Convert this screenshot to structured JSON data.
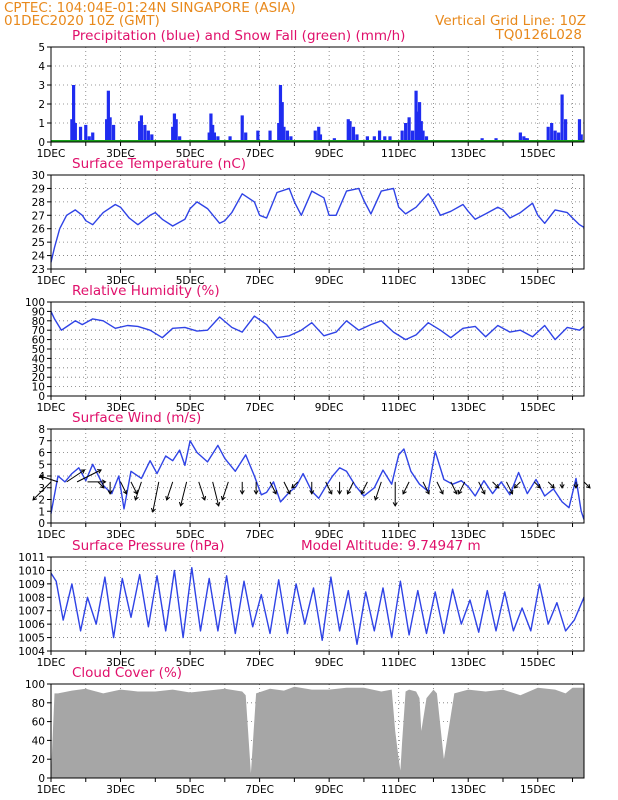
{
  "header": {
    "source_location": "CPTEC:   104:04E-01:24N   SINGAPORE (ASIA)",
    "init_time": "01DEC2020 10Z (GMT)",
    "grid_note": "Vertical Grid Line: 10Z",
    "run_code": "TQ0126L028"
  },
  "colors": {
    "header": "#e8891c",
    "title": "#e0106b",
    "line": "#2f43e6",
    "precip": "#1f2cf0",
    "snow": "#18a218",
    "cloud": "#a6a6a6",
    "wind_vector": "#000000"
  },
  "x_tick_labels": [
    "1DEC",
    "3DEC",
    "5DEC",
    "7DEC",
    "9DEC",
    "11DEC",
    "13DEC",
    "15DEC"
  ],
  "panels": {
    "precip": {
      "title": "Precipitation (blue) and Snow Fall (green) (mm/h)",
      "y_ticks": [
        "0",
        "1",
        "2",
        "3",
        "4",
        "5"
      ]
    },
    "temp": {
      "title": "Surface Temperature (nC)",
      "y_ticks": [
        "23",
        "24",
        "25",
        "26",
        "27",
        "28",
        "29",
        "30"
      ]
    },
    "rh": {
      "title": "Relative Humidity (%)",
      "y_ticks": [
        "0",
        "10",
        "20",
        "30",
        "40",
        "50",
        "60",
        "70",
        "80",
        "90",
        "100"
      ]
    },
    "wind": {
      "title": "Surface Wind (m/s)",
      "y_ticks": [
        "0",
        "1",
        "2",
        "3",
        "4",
        "5",
        "6",
        "7",
        "8"
      ]
    },
    "pres": {
      "title": "Surface Pressure (hPa)",
      "altitude": "Model Altitude: 9.74947 m",
      "y_ticks": [
        "1004",
        "1005",
        "1006",
        "1007",
        "1008",
        "1009",
        "1010",
        "1011"
      ]
    },
    "cloud": {
      "title": "Cloud Cover (%)",
      "y_ticks": [
        "0",
        "20",
        "40",
        "60",
        "80",
        "100"
      ]
    }
  },
  "chart_data": [
    {
      "type": "bar",
      "id": "precip",
      "title": "Precipitation (blue) and Snow Fall (green) (mm/h)",
      "x_unit": "day of December 2020",
      "xlim": [
        1,
        16.33
      ],
      "ylim": [
        0,
        5
      ],
      "series": [
        {
          "name": "Precipitation",
          "x": [
            1.6,
            1.65,
            1.7,
            1.85,
            2.0,
            2.1,
            2.2,
            2.6,
            2.65,
            2.7,
            2.8,
            3.55,
            3.6,
            3.7,
            3.8,
            3.9,
            4.5,
            4.55,
            4.6,
            4.7,
            5.55,
            5.6,
            5.65,
            5.7,
            5.8,
            6.15,
            6.5,
            6.6,
            6.95,
            7.3,
            7.55,
            7.6,
            7.65,
            7.7,
            7.8,
            7.9,
            8.6,
            8.7,
            8.75,
            9.15,
            9.55,
            9.6,
            9.7,
            9.8,
            10.1,
            10.3,
            10.45,
            10.6,
            10.75,
            11.1,
            11.2,
            11.3,
            11.4,
            11.5,
            11.55,
            11.6,
            11.65,
            11.7,
            11.8,
            12.9,
            13.4,
            13.8,
            14.5,
            14.6,
            14.65,
            14.7,
            15.3,
            15.4,
            15.5,
            15.6,
            15.7,
            15.8,
            16.2,
            16.25
          ],
          "values": [
            1.2,
            3.0,
            1.0,
            0.8,
            0.9,
            0.3,
            0.5,
            1.2,
            2.7,
            1.3,
            0.9,
            1.1,
            1.4,
            0.9,
            0.6,
            0.4,
            0.8,
            1.5,
            1.2,
            0.3,
            0.5,
            1.5,
            0.9,
            0.5,
            0.3,
            0.3,
            1.4,
            0.5,
            0.6,
            0.6,
            1.0,
            3.0,
            2.1,
            0.8,
            0.6,
            0.3,
            0.6,
            0.8,
            0.4,
            0.2,
            1.2,
            1.1,
            0.8,
            0.4,
            0.3,
            0.3,
            0.6,
            0.3,
            0.3,
            0.6,
            1.0,
            1.3,
            0.6,
            2.7,
            1.6,
            2.1,
            1.1,
            0.6,
            0.3,
            0.1,
            0.2,
            0.2,
            0.5,
            0.3,
            0.2,
            0.2,
            0.8,
            1.0,
            0.6,
            0.5,
            2.5,
            1.2,
            1.2,
            0.4
          ]
        },
        {
          "name": "Snow Fall",
          "x": [
            1.0,
            16.33
          ],
          "values": [
            0,
            0
          ]
        }
      ]
    },
    {
      "type": "line",
      "id": "temp",
      "title": "Surface Temperature (nC)",
      "xlim": [
        1,
        16.33
      ],
      "ylim": [
        23,
        30
      ],
      "x": [
        1.0,
        1.1,
        1.25,
        1.45,
        1.7,
        1.9,
        2.0,
        2.2,
        2.5,
        2.85,
        3.0,
        3.25,
        3.5,
        3.85,
        4.0,
        4.2,
        4.5,
        4.85,
        5.0,
        5.2,
        5.5,
        5.85,
        6.0,
        6.2,
        6.5,
        6.85,
        7.0,
        7.2,
        7.5,
        7.85,
        8.0,
        8.2,
        8.5,
        8.85,
        9.0,
        9.2,
        9.5,
        9.85,
        10.0,
        10.2,
        10.5,
        10.85,
        11.0,
        11.2,
        11.5,
        11.85,
        12.0,
        12.2,
        12.5,
        12.85,
        13.0,
        13.2,
        13.5,
        13.85,
        14.0,
        14.2,
        14.5,
        14.85,
        15.0,
        15.2,
        15.5,
        15.85,
        16.0,
        16.2,
        16.33
      ],
      "values": [
        23.5,
        24.6,
        26.0,
        27.0,
        27.4,
        27.0,
        26.6,
        26.3,
        27.2,
        27.8,
        27.6,
        26.8,
        26.3,
        27.0,
        27.2,
        26.7,
        26.2,
        26.7,
        27.5,
        28.0,
        27.5,
        26.4,
        26.6,
        27.2,
        28.6,
        28.0,
        27.0,
        26.8,
        28.7,
        29.0,
        28.0,
        27.0,
        28.8,
        28.3,
        27.0,
        27.0,
        28.8,
        29.0,
        28.1,
        27.1,
        28.8,
        29.0,
        27.6,
        27.1,
        27.6,
        28.6,
        28.0,
        27.0,
        27.3,
        27.8,
        27.3,
        26.7,
        27.1,
        27.6,
        27.4,
        26.8,
        27.2,
        27.9,
        27.0,
        26.4,
        27.4,
        27.2,
        26.8,
        26.3,
        26.1
      ]
    },
    {
      "type": "line",
      "id": "rh",
      "title": "Relative Humidity (%)",
      "xlim": [
        1,
        16.33
      ],
      "ylim": [
        0,
        100
      ],
      "x": [
        1.0,
        1.1,
        1.3,
        1.5,
        1.7,
        1.9,
        2.2,
        2.5,
        2.85,
        3.2,
        3.5,
        3.85,
        4.2,
        4.5,
        4.85,
        5.2,
        5.5,
        5.85,
        6.2,
        6.5,
        6.85,
        7.2,
        7.5,
        7.85,
        8.2,
        8.5,
        8.85,
        9.2,
        9.5,
        9.85,
        10.2,
        10.5,
        10.85,
        11.2,
        11.5,
        11.85,
        12.2,
        12.5,
        12.85,
        13.2,
        13.5,
        13.85,
        14.2,
        14.5,
        14.85,
        15.2,
        15.5,
        15.85,
        16.2,
        16.33
      ],
      "values": [
        90,
        82,
        70,
        75,
        80,
        76,
        82,
        80,
        72,
        75,
        74,
        70,
        62,
        72,
        73,
        69,
        70,
        84,
        73,
        68,
        85,
        76,
        62,
        64,
        70,
        78,
        64,
        68,
        80,
        70,
        76,
        80,
        68,
        60,
        65,
        78,
        70,
        62,
        72,
        74,
        63,
        75,
        68,
        70,
        63,
        75,
        60,
        73,
        70,
        74
      ]
    },
    {
      "type": "line",
      "id": "wind",
      "title": "Surface Wind (m/s)",
      "xlim": [
        1,
        16.33
      ],
      "ylim": [
        0,
        8
      ],
      "x": [
        1.0,
        1.2,
        1.4,
        1.6,
        1.8,
        2.0,
        2.2,
        2.5,
        2.75,
        2.95,
        3.1,
        3.3,
        3.6,
        3.85,
        4.05,
        4.3,
        4.5,
        4.7,
        4.85,
        5.0,
        5.2,
        5.5,
        5.8,
        6.0,
        6.3,
        6.6,
        6.85,
        7.05,
        7.2,
        7.4,
        7.6,
        7.85,
        8.05,
        8.25,
        8.5,
        8.7,
        8.9,
        9.1,
        9.3,
        9.5,
        9.75,
        10.0,
        10.3,
        10.55,
        10.8,
        11.0,
        11.15,
        11.35,
        11.6,
        11.85,
        12.05,
        12.3,
        12.55,
        12.8,
        13.0,
        13.2,
        13.45,
        13.7,
        13.95,
        14.2,
        14.45,
        14.7,
        14.95,
        15.2,
        15.45,
        15.7,
        15.9,
        16.1,
        16.25,
        16.33
      ],
      "values": [
        0.8,
        4.0,
        3.5,
        4.2,
        4.7,
        3.6,
        5.0,
        3.2,
        2.5,
        4.0,
        1.2,
        4.4,
        3.8,
        5.3,
        4.2,
        5.7,
        5.3,
        6.2,
        4.9,
        7.0,
        6.0,
        5.2,
        6.6,
        5.5,
        4.4,
        5.8,
        4.0,
        2.4,
        2.6,
        3.5,
        1.8,
        2.6,
        3.1,
        4.2,
        2.7,
        2.1,
        3.1,
        4.0,
        4.7,
        4.4,
        3.2,
        2.3,
        3.0,
        4.5,
        3.3,
        5.8,
        6.3,
        4.4,
        3.3,
        2.7,
        6.1,
        3.7,
        3.3,
        3.6,
        3.1,
        2.3,
        3.6,
        2.5,
        3.5,
        2.4,
        4.3,
        2.5,
        3.7,
        2.3,
        2.9,
        1.8,
        1.3,
        3.8,
        1.0,
        0.3
      ]
    },
    {
      "type": "line",
      "id": "pres",
      "title": "Surface Pressure (hPa)",
      "xlim": [
        1,
        16.33
      ],
      "ylim": [
        1004,
        1011
      ],
      "x": [
        1.0,
        1.15,
        1.35,
        1.6,
        1.85,
        2.05,
        2.3,
        2.55,
        2.8,
        3.05,
        3.3,
        3.55,
        3.8,
        4.05,
        4.3,
        4.55,
        4.8,
        5.05,
        5.3,
        5.55,
        5.8,
        6.05,
        6.3,
        6.55,
        6.8,
        7.05,
        7.3,
        7.55,
        7.8,
        8.05,
        8.3,
        8.55,
        8.8,
        9.05,
        9.3,
        9.55,
        9.8,
        10.05,
        10.3,
        10.55,
        10.8,
        11.05,
        11.3,
        11.55,
        11.8,
        12.05,
        12.3,
        12.55,
        12.8,
        13.05,
        13.3,
        13.55,
        13.8,
        14.05,
        14.3,
        14.55,
        14.8,
        15.05,
        15.3,
        15.55,
        15.8,
        16.05,
        16.33
      ],
      "values": [
        1009.8,
        1009.2,
        1006.3,
        1009.0,
        1005.5,
        1008.0,
        1006.0,
        1009.5,
        1005.0,
        1009.4,
        1006.5,
        1009.7,
        1005.8,
        1009.6,
        1005.5,
        1010.0,
        1005.0,
        1010.2,
        1005.5,
        1009.4,
        1005.5,
        1009.6,
        1005.3,
        1009.2,
        1005.8,
        1008.2,
        1005.3,
        1009.3,
        1005.3,
        1009.0,
        1006.0,
        1008.7,
        1004.8,
        1009.5,
        1005.5,
        1008.5,
        1004.5,
        1008.4,
        1005.5,
        1008.7,
        1005.0,
        1009.2,
        1005.2,
        1008.5,
        1005.3,
        1008.4,
        1005.3,
        1008.6,
        1006.0,
        1007.8,
        1005.4,
        1008.5,
        1005.5,
        1008.4,
        1005.5,
        1007.2,
        1005.5,
        1009.0,
        1006.0,
        1007.6,
        1005.5,
        1006.3,
        1008.0
      ]
    },
    {
      "type": "area",
      "id": "cloud",
      "title": "Cloud Cover (%)",
      "xlim": [
        1,
        16.33
      ],
      "ylim": [
        0,
        100
      ],
      "x": [
        1.0,
        1.1,
        1.2,
        1.6,
        2.0,
        2.5,
        3.0,
        3.5,
        4.0,
        4.5,
        5.0,
        5.5,
        6.0,
        6.5,
        6.6,
        6.75,
        6.9,
        7.3,
        7.7,
        8.0,
        8.5,
        9.0,
        9.5,
        10.0,
        10.5,
        10.8,
        10.9,
        11.0,
        11.05,
        11.1,
        11.2,
        11.3,
        11.5,
        11.6,
        11.65,
        11.8,
        12.0,
        12.1,
        12.2,
        12.3,
        12.6,
        13.0,
        13.5,
        14.0,
        14.5,
        15.0,
        15.5,
        15.8,
        16.0,
        16.33
      ],
      "values": [
        2,
        90,
        90,
        93,
        95,
        90,
        94,
        92,
        92,
        94,
        91,
        93,
        95,
        92,
        88,
        5,
        90,
        95,
        93,
        97,
        94,
        94,
        96,
        96,
        92,
        94,
        50,
        20,
        8,
        40,
        92,
        94,
        92,
        85,
        50,
        85,
        94,
        90,
        55,
        20,
        90,
        94,
        92,
        94,
        88,
        96,
        94,
        90,
        96,
        96
      ]
    },
    {
      "type": "vector",
      "id": "wind_vectors",
      "x": [
        1.0,
        1.2,
        1.45,
        1.75,
        2.05,
        2.35,
        2.7,
        3.0,
        3.3,
        3.6,
        4.1,
        4.5,
        4.9,
        5.25,
        5.65,
        6.1,
        6.5,
        6.9,
        7.3,
        7.7,
        8.1,
        8.5,
        8.9,
        9.3,
        9.7,
        10.1,
        10.5,
        10.9,
        11.3,
        11.7,
        12.1,
        12.5,
        12.9,
        13.3,
        13.7,
        14.1,
        14.5,
        14.9,
        15.3,
        15.7,
        16.1,
        16.33
      ],
      "u": [
        -3,
        -3,
        3,
        4,
        3,
        1,
        0,
        1,
        1,
        -1,
        -1,
        -1,
        -1,
        1,
        1,
        -1,
        0,
        0,
        1,
        1,
        -1,
        0,
        1,
        0,
        -1,
        -1,
        -1,
        0,
        -1,
        1,
        1,
        1,
        -1,
        1,
        1,
        1,
        -1,
        1,
        1,
        0,
        0,
        1
      ],
      "v": [
        -3,
        1,
        2,
        2,
        0,
        -1,
        -2,
        -2,
        -2,
        -3,
        -5,
        -3,
        -4,
        -3,
        -4,
        -3,
        -2,
        -2,
        -2,
        -2,
        -1,
        -2,
        -2,
        -2,
        -2,
        -2,
        -3,
        -4,
        -2,
        -2,
        -2,
        -2,
        -2,
        -2,
        -1,
        -2,
        -1,
        -1,
        -1,
        -1,
        -1,
        -1
      ]
    }
  ]
}
